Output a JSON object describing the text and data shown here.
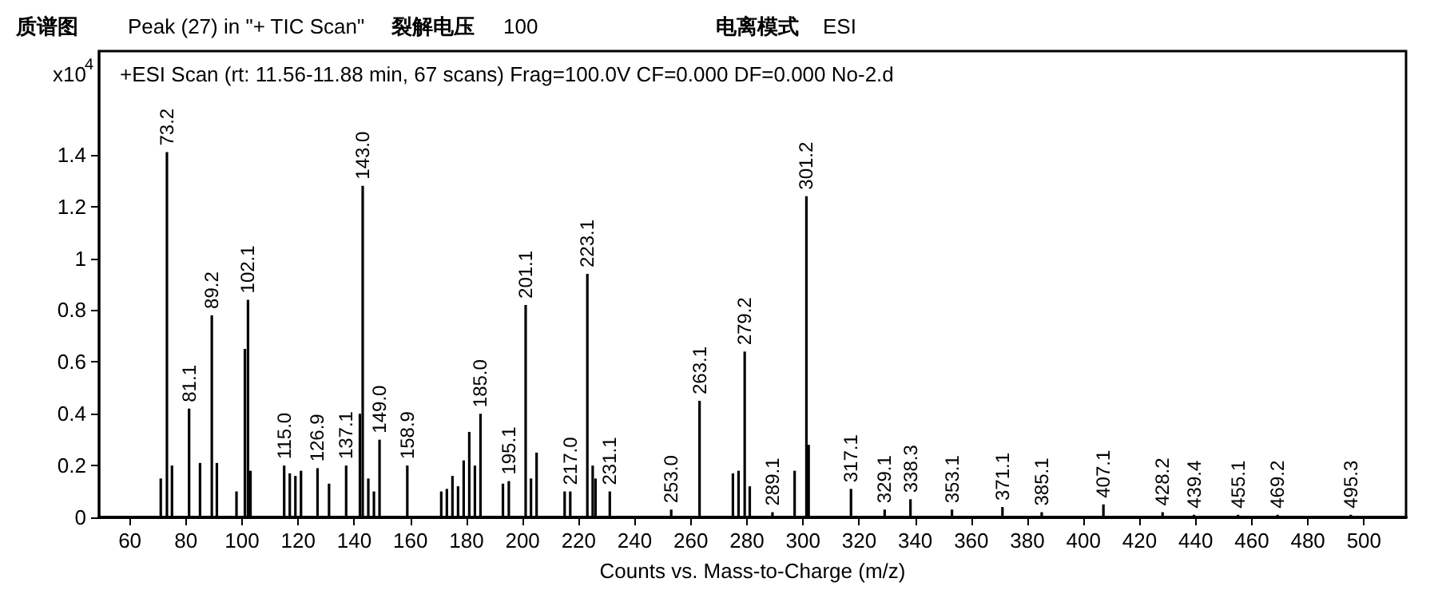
{
  "chart_data": {
    "type": "bar",
    "title": "质谱图",
    "subtitle": "+ESI Scan (rt: 11.56-11.88 min, 67 scans) Frag=100.0V CF=0.000 DF=0.000 No-2.d",
    "annotations": [
      "Peak (27) in \"+ TIC Scan\"",
      "裂解电压",
      "100",
      "电离模式",
      "ESI",
      {
        "text": "73.2",
        "x": 73.2,
        "y": 1.41
      },
      {
        "text": "81.1",
        "x": 81.1,
        "y": 0.42
      },
      {
        "text": "89.2",
        "x": 89.2,
        "y": 0.78
      },
      {
        "text": "102.1",
        "x": 102.1,
        "y": 0.84
      },
      {
        "text": "115.0",
        "x": 115.0,
        "y": 0.2
      },
      {
        "text": "126.9",
        "x": 126.9,
        "y": 0.19
      },
      {
        "text": "137.1",
        "x": 137.1,
        "y": 0.2
      },
      {
        "text": "143.0",
        "x": 143.0,
        "y": 1.28
      },
      {
        "text": "149.0",
        "x": 149.0,
        "y": 0.3
      },
      {
        "text": "158.9",
        "x": 158.9,
        "y": 0.2
      },
      {
        "text": "185.0",
        "x": 185.0,
        "y": 0.4
      },
      {
        "text": "195.1",
        "x": 195.1,
        "y": 0.14
      },
      {
        "text": "201.1",
        "x": 201.1,
        "y": 0.82
      },
      {
        "text": "217.0",
        "x": 217.0,
        "y": 0.1
      },
      {
        "text": "223.1",
        "x": 223.1,
        "y": 0.94
      },
      {
        "text": "231.1",
        "x": 231.1,
        "y": 0.1
      },
      {
        "text": "253.0",
        "x": 253.0,
        "y": 0.03
      },
      {
        "text": "263.1",
        "x": 263.1,
        "y": 0.45
      },
      {
        "text": "279.2",
        "x": 279.2,
        "y": 0.64
      },
      {
        "text": "289.1",
        "x": 289.1,
        "y": 0.02
      },
      {
        "text": "301.2",
        "x": 301.2,
        "y": 1.24
      },
      {
        "text": "317.1",
        "x": 317.1,
        "y": 0.11
      },
      {
        "text": "329.1",
        "x": 329.1,
        "y": 0.03
      },
      {
        "text": "338.3",
        "x": 338.3,
        "y": 0.07
      },
      {
        "text": "353.1",
        "x": 353.1,
        "y": 0.03
      },
      {
        "text": "371.1",
        "x": 371.1,
        "y": 0.04
      },
      {
        "text": "385.1",
        "x": 385.1,
        "y": 0.02
      },
      {
        "text": "407.1",
        "x": 407.1,
        "y": 0.05
      },
      {
        "text": "428.2",
        "x": 428.2,
        "y": 0.02
      },
      {
        "text": "439.4",
        "x": 439.4,
        "y": 0.01
      },
      {
        "text": "455.1",
        "x": 455.1,
        "y": 0.01
      },
      {
        "text": "469.2",
        "x": 469.2,
        "y": 0.01
      },
      {
        "text": "495.3",
        "x": 495.3,
        "y": 0.01
      }
    ],
    "xlabel": "Counts vs. Mass-to-Charge (m/z)",
    "ylabel": "x10$^{4}$",
    "x": [
      71,
      73.2,
      75,
      81.1,
      85,
      89.2,
      91,
      98,
      101,
      102.1,
      103,
      115.0,
      117,
      119,
      121,
      126.9,
      131,
      137.1,
      142,
      143.0,
      145,
      147,
      149.0,
      158.9,
      171,
      173,
      175,
      177,
      179,
      181,
      183,
      185.0,
      193,
      195.1,
      201.1,
      203,
      205,
      215,
      217.0,
      223.1,
      225,
      226,
      231.1,
      253.0,
      263.1,
      275,
      277,
      279.2,
      281,
      289.1,
      297,
      301.2,
      302,
      317.1,
      329.1,
      338.3,
      353.1,
      371.1,
      385.1,
      407.1,
      428.2,
      439.4,
      455.1,
      469.2,
      495.3
    ],
    "values": [
      0.15,
      1.41,
      0.2,
      0.42,
      0.21,
      0.78,
      0.21,
      0.1,
      0.65,
      0.84,
      0.18,
      0.2,
      0.17,
      0.16,
      0.18,
      0.19,
      0.13,
      0.2,
      0.4,
      1.28,
      0.15,
      0.1,
      0.3,
      0.2,
      0.1,
      0.11,
      0.16,
      0.12,
      0.22,
      0.33,
      0.2,
      0.4,
      0.13,
      0.14,
      0.82,
      0.15,
      0.25,
      0.1,
      0.1,
      0.94,
      0.2,
      0.15,
      0.1,
      0.03,
      0.45,
      0.17,
      0.18,
      0.64,
      0.12,
      0.02,
      0.18,
      1.24,
      0.28,
      0.11,
      0.03,
      0.07,
      0.03,
      0.04,
      0.02,
      0.05,
      0.02,
      0.01,
      0.01,
      0.01,
      0.01
    ],
    "color": "#000000",
    "xlim": [
      49,
      515
    ],
    "xticks": [
      60,
      80,
      100,
      120,
      140,
      160,
      180,
      200,
      220,
      240,
      260,
      280,
      300,
      320,
      340,
      360,
      380,
      400,
      420,
      440,
      460,
      480,
      500
    ],
    "ylim": [
      0,
      1.8
    ],
    "yticks": [
      0,
      0.2,
      0.4,
      0.6,
      0.8,
      1,
      1.2,
      1.4
    ],
    "grid": false
  }
}
